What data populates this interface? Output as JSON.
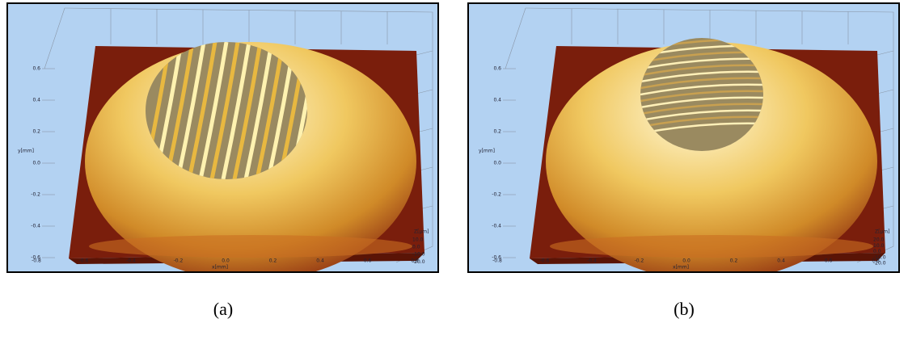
{
  "panels": [
    {
      "caption": "(a)",
      "y_axis_label": "y[mm]",
      "x_axis_label": "x[mm]",
      "z_axis_label": "Z[µm]",
      "y_ticks": [
        "0.6",
        "0.4",
        "0.2",
        "0.0",
        "-0.2",
        "-0.4",
        "-0.6"
      ],
      "x_ticks": [
        "-0.8",
        "-0.6",
        "-0.4",
        "-0.2",
        "0.0",
        "0.2",
        "0.4",
        "0.6",
        "0.8"
      ],
      "z_ticks": [
        "10.0",
        "0.0",
        "-10.0",
        "-20.0"
      ]
    },
    {
      "caption": "(b)",
      "y_axis_label": "y[mm]",
      "x_axis_label": "x[mm]",
      "z_axis_label": "Z[µm]",
      "y_ticks": [
        "0.6",
        "0.4",
        "0.2",
        "0.0",
        "-0.2",
        "-0.4",
        "-0.6"
      ],
      "x_ticks": [
        "-0.8",
        "-0.6",
        "-0.4",
        "-0.2",
        "0.0",
        "0.2",
        "0.4",
        "0.6",
        "0.8"
      ],
      "z_ticks": [
        "20.0",
        "10.0",
        "0.0",
        "-10.0",
        "-20.0"
      ]
    }
  ]
}
